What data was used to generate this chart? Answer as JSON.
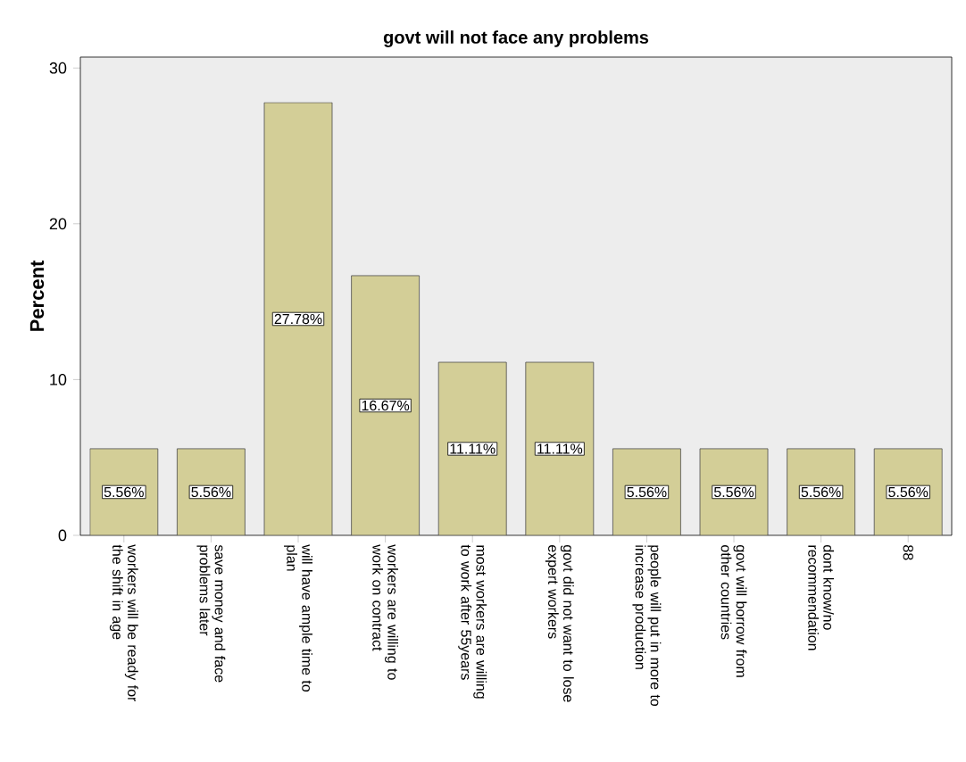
{
  "chart_data": {
    "type": "bar",
    "title": "govt will not face any problems",
    "ylabel": "Percent",
    "categories": [
      "workers will be ready for the shift in age",
      "save money and face problems later",
      "will have ample time to plan",
      "workers are willing to work on contract",
      "most workers are willing to work after 55years",
      "govt did not want to lose expert workers",
      "people will put in more to increase production",
      "govt will borrow from other countries",
      "dont know/no recommendation",
      "88"
    ],
    "values": [
      5.56,
      5.56,
      27.78,
      16.67,
      11.11,
      11.11,
      5.56,
      5.56,
      5.56,
      5.56
    ],
    "value_labels": [
      "5.56%",
      "5.56%",
      "27.78%",
      "16.67%",
      "11.11%",
      "11.11%",
      "5.56%",
      "5.56%",
      "5.56%",
      "5.56%"
    ],
    "color": "#d3ce97",
    "ylim": [
      0,
      30.7
    ],
    "yticks": [
      0,
      10,
      20,
      30
    ]
  }
}
